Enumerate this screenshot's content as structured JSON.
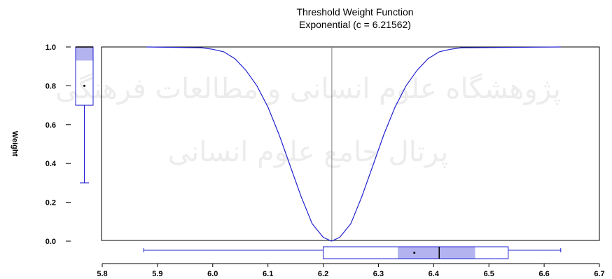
{
  "chart_data": {
    "type": "line",
    "title": "Threshold Weight Function",
    "subtitle": "Exponential (c = 6.21562)",
    "ylabel": "Weight",
    "xlabel": "",
    "xlim": [
      5.8,
      6.7
    ],
    "ylim": [
      0.0,
      1.0
    ],
    "x_ticks": [
      "5.8",
      "5.9",
      "6.0",
      "6.1",
      "6.2",
      "6.3",
      "6.4",
      "6.5",
      "6.6",
      "6.7"
    ],
    "y_ticks": [
      "0.0",
      "0.2",
      "0.4",
      "0.6",
      "0.8",
      "1.0"
    ],
    "grid": false,
    "series": [
      {
        "color": "#2020d0",
        "x": [
          5.88,
          5.98,
          6.0,
          6.02,
          6.04,
          6.06,
          6.08,
          6.1,
          6.12,
          6.14,
          6.16,
          6.18,
          6.2,
          6.215,
          6.23,
          6.25,
          6.27,
          6.29,
          6.31,
          6.33,
          6.35,
          6.37,
          6.39,
          6.41,
          6.43,
          6.45,
          6.63
        ],
        "y": [
          1.0,
          0.996,
          0.988,
          0.975,
          0.94,
          0.88,
          0.8,
          0.69,
          0.55,
          0.39,
          0.23,
          0.09,
          0.02,
          0.0,
          0.02,
          0.09,
          0.23,
          0.39,
          0.55,
          0.69,
          0.8,
          0.88,
          0.94,
          0.975,
          0.988,
          0.996,
          1.0
        ]
      }
    ],
    "vline": {
      "x": 6.21562,
      "color": "#808080"
    },
    "weight_boxplot": {
      "whisker_low": 0.3,
      "q1": 0.7,
      "median": 1.0,
      "q3": 1.0,
      "mean": 0.8,
      "shaded_from": 0.93
    },
    "x_boxplot": {
      "whisker_low": 5.875,
      "q1": 6.2,
      "median": 6.41,
      "q3": 6.535,
      "whisker_high": 6.63,
      "mean": 6.365,
      "shaded_range": [
        6.335,
        6.475
      ]
    }
  },
  "colors": {
    "line": "#2020d0",
    "axis": "#000000",
    "shade": "#b3b3f0",
    "vline": "#808080",
    "watermark": "#9a9a9a"
  },
  "watermark": {
    "line1": "پژوهشگاه علوم انسانی و مطالعات فرهنگی",
    "line2": "پرتال جامع علوم انسانی"
  }
}
